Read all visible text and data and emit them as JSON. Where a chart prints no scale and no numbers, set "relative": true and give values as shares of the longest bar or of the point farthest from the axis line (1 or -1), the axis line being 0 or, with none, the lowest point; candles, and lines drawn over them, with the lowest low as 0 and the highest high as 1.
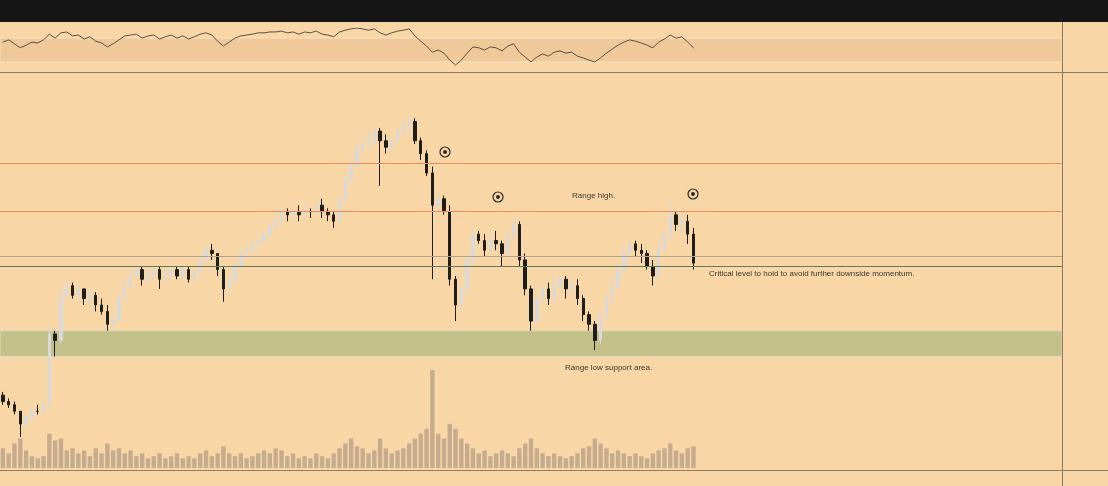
{
  "chart_data": [
    {
      "type": "line",
      "relative": true,
      "tick_labels": false,
      "marker": "none",
      "color": "#5a5047",
      "categories": [
        null,
        null,
        null,
        null,
        null,
        null,
        null,
        null,
        null,
        null,
        null,
        null,
        null,
        null,
        null,
        null,
        null,
        null,
        null,
        null,
        null,
        null,
        null,
        null,
        null,
        null,
        null,
        null,
        null,
        null,
        null,
        null,
        null,
        null,
        null,
        null,
        null,
        null,
        null,
        null,
        null,
        null,
        null,
        null,
        null,
        null,
        null,
        null,
        null,
        null,
        null,
        null,
        null,
        null,
        null,
        null,
        null,
        null,
        null,
        null,
        null,
        null,
        null,
        null,
        null,
        null,
        null,
        null,
        null,
        null,
        null,
        null,
        null,
        null,
        null,
        null,
        null,
        null,
        null,
        null,
        null,
        null,
        null,
        null,
        null,
        null,
        null,
        null,
        null,
        null,
        null,
        null,
        null,
        null,
        null,
        null,
        null,
        null,
        null,
        null,
        null,
        null,
        null,
        null,
        null,
        null,
        null,
        null,
        null,
        null,
        null,
        null,
        null,
        null,
        null,
        null,
        null,
        null,
        null,
        null,
        null,
        null,
        null,
        null,
        null,
        null,
        null,
        null,
        null,
        null,
        null,
        null,
        null,
        null,
        null,
        null,
        null,
        null,
        null,
        null,
        null,
        null,
        null,
        null,
        null,
        null,
        null,
        null,
        null,
        null,
        null,
        null,
        null,
        null,
        null,
        null,
        null,
        null,
        null,
        null,
        null,
        null,
        null,
        null,
        null,
        null,
        null,
        null,
        null,
        null,
        null,
        null,
        null,
        null,
        null,
        null,
        null,
        null,
        null,
        null,
        null,
        null,
        null
      ],
      "values": [
        0.68,
        0.73,
        0.64,
        0.55,
        0.61,
        0.68,
        0.66,
        0.73,
        0.86,
        0.77,
        0.89,
        0.91,
        0.82,
        0.84,
        0.75,
        0.8,
        0.7,
        0.66,
        0.57,
        0.64,
        0.73,
        0.82,
        0.84,
        0.86,
        0.77,
        0.82,
        0.84,
        0.75,
        0.8,
        0.84,
        0.77,
        0.82,
        0.75,
        0.8,
        0.86,
        0.89,
        0.84,
        0.7,
        0.59,
        0.68,
        0.77,
        0.82,
        0.84,
        0.86,
        0.89,
        0.89,
        0.91,
        0.91,
        0.93,
        0.89,
        0.91,
        0.86,
        0.91,
        0.89,
        0.93,
        0.86,
        0.84,
        0.8,
        0.91,
        0.95,
        0.98,
        1.0,
        0.98,
        0.95,
        0.98,
        0.89,
        0.84,
        0.89,
        0.93,
        0.95,
        0.98,
        0.82,
        0.7,
        0.59,
        0.45,
        0.5,
        0.43,
        0.27,
        0.16,
        0.27,
        0.43,
        0.57,
        0.55,
        0.5,
        0.57,
        0.55,
        0.48,
        0.59,
        0.64,
        0.45,
        0.34,
        0.23,
        0.34,
        0.41,
        0.36,
        0.45,
        0.48,
        0.43,
        0.45,
        0.36,
        0.32,
        0.27,
        0.23,
        0.32,
        0.43,
        0.52,
        0.61,
        0.68,
        0.73,
        0.7,
        0.66,
        0.61,
        0.55,
        0.68,
        0.75,
        0.84,
        0.77,
        0.8,
        0.68,
        0.55,
        null,
        null,
        null,
        null,
        null,
        null,
        null,
        null,
        null,
        null,
        null,
        null,
        null,
        null,
        null,
        null,
        null,
        null,
        null,
        null,
        null,
        null,
        null,
        null,
        null,
        null,
        null,
        null,
        null,
        null,
        null,
        null,
        null,
        null,
        null,
        null,
        null,
        null,
        null,
        null,
        null,
        null,
        null,
        null,
        null,
        null,
        null,
        null,
        null,
        null,
        null,
        null,
        null,
        null,
        null,
        null,
        null,
        null,
        null,
        null,
        null,
        null,
        null
      ],
      "bands": [
        {
          "axis": "y",
          "from": 0.23,
          "to": 0.77,
          "color": "#efc999"
        }
      ]
    },
    {
      "type": "candlestick",
      "relative": true,
      "tick_labels": false,
      "categories": [
        null,
        null,
        null,
        null,
        null,
        null,
        null,
        null,
        null,
        null,
        null,
        null,
        null,
        null,
        null,
        null,
        null,
        null,
        null,
        null,
        null,
        null,
        null,
        null,
        null,
        null,
        null,
        null,
        null,
        null,
        null,
        null,
        null,
        null,
        null,
        null,
        null,
        null,
        null,
        null,
        null,
        null,
        null,
        null,
        null,
        null,
        null,
        null,
        null,
        null,
        null,
        null,
        null,
        null,
        null,
        null,
        null,
        null,
        null,
        null,
        null,
        null,
        null,
        null,
        null,
        null,
        null,
        null,
        null,
        null,
        null,
        null,
        null,
        null,
        null,
        null,
        null,
        null,
        null,
        null,
        null,
        null,
        null,
        null,
        null,
        null,
        null,
        null,
        null,
        null,
        null,
        null,
        null,
        null,
        null,
        null,
        null,
        null,
        null,
        null,
        null,
        null,
        null,
        null,
        null,
        null,
        null,
        null,
        null,
        null,
        null,
        null,
        null,
        null,
        null,
        null,
        null,
        null,
        null,
        null,
        null,
        null,
        null,
        null,
        null,
        null,
        null,
        null,
        null,
        null,
        null,
        null,
        null,
        null,
        null,
        null,
        null,
        null,
        null,
        null,
        null,
        null,
        null,
        null,
        null,
        null,
        null,
        null,
        null,
        null,
        null,
        null,
        null,
        null,
        null,
        null,
        null,
        null,
        null,
        null,
        null,
        null,
        null,
        null,
        null,
        null,
        null,
        null,
        null,
        null,
        null,
        null,
        null,
        null,
        null,
        null,
        null,
        null,
        null,
        null,
        null,
        null,
        null
      ],
      "ohlc": [
        [
          0.13,
          0.14,
          0.1,
          0.11
        ],
        [
          0.11,
          0.12,
          0.09,
          0.1
        ],
        [
          0.1,
          0.11,
          0.07,
          0.08
        ],
        [
          0.08,
          0.08,
          0.0,
          0.04
        ],
        [
          0.04,
          0.07,
          0.03,
          0.06
        ],
        [
          0.06,
          0.1,
          0.05,
          0.08
        ],
        [
          0.08,
          0.1,
          0.07,
          0.08
        ],
        [
          0.08,
          0.11,
          0.07,
          0.1
        ],
        [
          0.1,
          0.35,
          0.09,
          0.32
        ],
        [
          0.32,
          0.33,
          0.25,
          0.3
        ],
        [
          0.3,
          0.47,
          0.29,
          0.44
        ],
        [
          0.44,
          0.49,
          0.43,
          0.47
        ],
        [
          0.47,
          0.48,
          0.43,
          0.44
        ],
        [
          0.44,
          0.48,
          0.43,
          0.46
        ],
        [
          0.46,
          0.46,
          0.41,
          0.43
        ],
        [
          0.43,
          0.46,
          0.41,
          0.44
        ],
        [
          0.44,
          0.45,
          0.39,
          0.41
        ],
        [
          0.41,
          0.43,
          0.38,
          0.39
        ],
        [
          0.39,
          0.41,
          0.33,
          0.35
        ],
        [
          0.35,
          0.38,
          0.33,
          0.36
        ],
        [
          0.36,
          0.44,
          0.36,
          0.43
        ],
        [
          0.43,
          0.49,
          0.42,
          0.47
        ],
        [
          0.47,
          0.52,
          0.46,
          0.5
        ],
        [
          0.5,
          0.54,
          0.49,
          0.52
        ],
        [
          0.52,
          0.53,
          0.47,
          0.49
        ],
        [
          0.49,
          0.52,
          0.47,
          0.5
        ],
        [
          0.5,
          0.53,
          0.49,
          0.52
        ],
        [
          0.52,
          0.53,
          0.46,
          0.49
        ],
        [
          0.49,
          0.52,
          0.48,
          0.5
        ],
        [
          0.5,
          0.54,
          0.49,
          0.52
        ],
        [
          0.52,
          0.53,
          0.49,
          0.5
        ],
        [
          0.5,
          0.53,
          0.49,
          0.52
        ],
        [
          0.52,
          0.53,
          0.48,
          0.49
        ],
        [
          0.49,
          0.52,
          0.48,
          0.51
        ],
        [
          0.51,
          0.57,
          0.5,
          0.55
        ],
        [
          0.55,
          0.6,
          0.54,
          0.58
        ],
        [
          0.58,
          0.6,
          0.55,
          0.57
        ],
        [
          0.57,
          0.57,
          0.5,
          0.52
        ],
        [
          0.52,
          0.53,
          0.42,
          0.46
        ],
        [
          0.46,
          0.5,
          0.44,
          0.49
        ],
        [
          0.49,
          0.55,
          0.48,
          0.53
        ],
        [
          0.53,
          0.58,
          0.52,
          0.57
        ],
        [
          0.57,
          0.6,
          0.55,
          0.58
        ],
        [
          0.58,
          0.61,
          0.57,
          0.6
        ],
        [
          0.6,
          0.63,
          0.58,
          0.61
        ],
        [
          0.61,
          0.64,
          0.6,
          0.63
        ],
        [
          0.63,
          0.67,
          0.61,
          0.65
        ],
        [
          0.65,
          0.69,
          0.64,
          0.67
        ],
        [
          0.67,
          0.72,
          0.66,
          0.7
        ],
        [
          0.7,
          0.71,
          0.67,
          0.69
        ],
        [
          0.69,
          0.72,
          0.68,
          0.7
        ],
        [
          0.7,
          0.72,
          0.67,
          0.69
        ],
        [
          0.69,
          0.72,
          0.68,
          0.7
        ],
        [
          0.7,
          0.71,
          0.68,
          0.7
        ],
        [
          0.7,
          0.74,
          0.69,
          0.72
        ],
        [
          0.72,
          0.74,
          0.68,
          0.7
        ],
        [
          0.7,
          0.71,
          0.67,
          0.69
        ],
        [
          0.69,
          0.7,
          0.65,
          0.67
        ],
        [
          0.67,
          0.75,
          0.66,
          0.74
        ],
        [
          0.74,
          0.81,
          0.72,
          0.8
        ],
        [
          0.8,
          0.87,
          0.78,
          0.84
        ],
        [
          0.84,
          0.91,
          0.84,
          0.9
        ],
        [
          0.9,
          0.94,
          0.88,
          0.91
        ],
        [
          0.91,
          0.95,
          0.89,
          0.92
        ],
        [
          0.92,
          0.97,
          0.91,
          0.95
        ],
        [
          0.95,
          0.96,
          0.78,
          0.92
        ],
        [
          0.92,
          0.94,
          0.88,
          0.9
        ],
        [
          0.9,
          0.93,
          0.89,
          0.92
        ],
        [
          0.92,
          0.97,
          0.91,
          0.95
        ],
        [
          0.95,
          0.98,
          0.94,
          0.97
        ],
        [
          0.97,
          1.0,
          0.95,
          0.98
        ],
        [
          0.98,
          0.99,
          0.91,
          0.92
        ],
        [
          0.92,
          0.93,
          0.86,
          0.88
        ],
        [
          0.88,
          0.89,
          0.81,
          0.82
        ],
        [
          0.82,
          0.84,
          0.49,
          0.72
        ],
        [
          0.72,
          0.75,
          0.7,
          0.74
        ],
        [
          0.74,
          0.75,
          0.69,
          0.7
        ],
        [
          0.7,
          0.72,
          0.47,
          0.49
        ],
        [
          0.49,
          0.5,
          0.36,
          0.41
        ],
        [
          0.41,
          0.47,
          0.39,
          0.46
        ],
        [
          0.46,
          0.57,
          0.44,
          0.55
        ],
        [
          0.55,
          0.65,
          0.53,
          0.63
        ],
        [
          0.63,
          0.64,
          0.6,
          0.61
        ],
        [
          0.61,
          0.63,
          0.56,
          0.58
        ],
        [
          0.58,
          0.63,
          0.57,
          0.61
        ],
        [
          0.61,
          0.64,
          0.58,
          0.6
        ],
        [
          0.6,
          0.61,
          0.53,
          0.57
        ],
        [
          0.57,
          0.64,
          0.56,
          0.63
        ],
        [
          0.63,
          0.68,
          0.61,
          0.66
        ],
        [
          0.66,
          0.67,
          0.53,
          0.55
        ],
        [
          0.55,
          0.57,
          0.44,
          0.46
        ],
        [
          0.46,
          0.47,
          0.33,
          0.36
        ],
        [
          0.36,
          0.44,
          0.35,
          0.43
        ],
        [
          0.43,
          0.47,
          0.41,
          0.46
        ],
        [
          0.46,
          0.48,
          0.41,
          0.43
        ],
        [
          0.43,
          0.52,
          0.41,
          0.47
        ],
        [
          0.47,
          0.5,
          0.46,
          0.49
        ],
        [
          0.49,
          0.5,
          0.43,
          0.46
        ],
        [
          0.46,
          0.49,
          0.44,
          0.47
        ],
        [
          0.47,
          0.49,
          0.41,
          0.43
        ],
        [
          0.43,
          0.44,
          0.36,
          0.38
        ],
        [
          0.38,
          0.39,
          0.33,
          0.35
        ],
        [
          0.35,
          0.36,
          0.27,
          0.3
        ],
        [
          0.3,
          0.39,
          0.29,
          0.38
        ],
        [
          0.38,
          0.44,
          0.36,
          0.43
        ],
        [
          0.43,
          0.49,
          0.41,
          0.47
        ],
        [
          0.47,
          0.54,
          0.46,
          0.52
        ],
        [
          0.52,
          0.59,
          0.5,
          0.57
        ],
        [
          0.57,
          0.62,
          0.55,
          0.6
        ],
        [
          0.6,
          0.61,
          0.56,
          0.58
        ],
        [
          0.58,
          0.6,
          0.54,
          0.57
        ],
        [
          0.57,
          0.58,
          0.52,
          0.53
        ],
        [
          0.53,
          0.55,
          0.47,
          0.5
        ],
        [
          0.5,
          0.6,
          0.49,
          0.58
        ],
        [
          0.58,
          0.64,
          0.57,
          0.63
        ],
        [
          0.63,
          0.74,
          0.61,
          0.69
        ],
        [
          0.69,
          0.7,
          0.64,
          0.66
        ],
        [
          0.66,
          0.69,
          0.63,
          0.67
        ],
        [
          0.67,
          0.69,
          0.6,
          0.63
        ],
        [
          0.63,
          0.65,
          0.52,
          0.54
        ],
        null,
        null,
        null,
        null,
        null,
        null,
        null,
        null,
        null,
        null,
        null,
        null,
        null,
        null,
        null,
        null,
        null,
        null,
        null,
        null,
        null,
        null,
        null,
        null,
        null,
        null,
        null,
        null,
        null,
        null,
        null,
        null,
        null,
        null,
        null,
        null,
        null,
        null,
        null,
        null,
        null,
        null,
        null,
        null,
        null,
        null,
        null,
        null,
        null,
        null,
        null,
        null,
        null,
        null,
        null,
        null,
        null,
        null,
        null,
        null,
        null,
        null,
        null
      ],
      "colors": [
        "#1e1e1e",
        "#1e1e1e",
        "#1e1e1e",
        "#1e1e1e",
        "#d9d9d9",
        "#d9d9d9",
        "#1e1e1e",
        "#d9d9d9",
        "#d9d9d9",
        "#1e1e1e",
        "#d9d9d9",
        "#d9d9d9",
        "#1e1e1e",
        "#d9d9d9",
        "#1e1e1e",
        "#d9d9d9",
        "#1e1e1e",
        "#1e1e1e",
        "#1e1e1e",
        "#d9d9d9",
        "#d9d9d9",
        "#d9d9d9",
        "#d9d9d9",
        "#d9d9d9",
        "#1e1e1e",
        "#d9d9d9",
        "#d9d9d9",
        "#1e1e1e",
        "#d9d9d9",
        "#d9d9d9",
        "#1e1e1e",
        "#d9d9d9",
        "#1e1e1e",
        "#d9d9d9",
        "#d9d9d9",
        "#d9d9d9",
        "#1e1e1e",
        "#1e1e1e",
        "#1e1e1e",
        "#d9d9d9",
        "#d9d9d9",
        "#d9d9d9",
        "#d9d9d9",
        "#d9d9d9",
        "#d9d9d9",
        "#d9d9d9",
        "#d9d9d9",
        "#d9d9d9",
        "#d9d9d9",
        "#1e1e1e",
        "#d9d9d9",
        "#1e1e1e",
        "#d9d9d9",
        "#1e1e1e",
        "#d9d9d9",
        "#1e1e1e",
        "#1e1e1e",
        "#1e1e1e",
        "#d9d9d9",
        "#d9d9d9",
        "#d9d9d9",
        "#d9d9d9",
        "#d9d9d9",
        "#d9d9d9",
        "#d9d9d9",
        "#1e1e1e",
        "#1e1e1e",
        "#d9d9d9",
        "#d9d9d9",
        "#d9d9d9",
        "#d9d9d9",
        "#1e1e1e",
        "#1e1e1e",
        "#1e1e1e",
        "#1e1e1e",
        "#d9d9d9",
        "#1e1e1e",
        "#1e1e1e",
        "#1e1e1e",
        "#d9d9d9",
        "#d9d9d9",
        "#d9d9d9",
        "#1e1e1e",
        "#1e1e1e",
        "#d9d9d9",
        "#1e1e1e",
        "#1e1e1e",
        "#d9d9d9",
        "#d9d9d9",
        "#1e1e1e",
        "#1e1e1e",
        "#1e1e1e",
        "#d9d9d9",
        "#d9d9d9",
        "#1e1e1e",
        "#d9d9d9",
        "#d9d9d9",
        "#1e1e1e",
        "#d9d9d9",
        "#1e1e1e",
        "#1e1e1e",
        "#1e1e1e",
        "#1e1e1e",
        "#d9d9d9",
        "#d9d9d9",
        "#d9d9d9",
        "#d9d9d9",
        "#d9d9d9",
        "#d9d9d9",
        "#1e1e1e",
        "#1e1e1e",
        "#1e1e1e",
        "#1e1e1e",
        "#d9d9d9",
        "#d9d9d9",
        "#d9d9d9",
        "#1e1e1e",
        "#d9d9d9",
        "#1e1e1e",
        "#1e1e1e",
        null,
        null,
        null,
        null,
        null,
        null,
        null,
        null,
        null,
        null,
        null,
        null,
        null,
        null,
        null,
        null,
        null,
        null,
        null,
        null,
        null,
        null,
        null,
        null,
        null,
        null,
        null,
        null,
        null,
        null,
        null,
        null,
        null,
        null,
        null,
        null,
        null,
        null,
        null,
        null,
        null,
        null,
        null,
        null,
        null,
        null,
        null,
        null,
        null,
        null,
        null,
        null,
        null,
        null,
        null,
        null,
        null,
        null,
        null,
        null,
        null,
        null,
        null
      ],
      "ref_lines": [
        {
          "axis": "y",
          "value": 0.85,
          "color": "#f08a5a"
        },
        {
          "axis": "y",
          "value": 0.7,
          "color": "#f08a5a"
        },
        {
          "axis": "y",
          "value": 0.56,
          "color": "#b4a28e"
        },
        {
          "axis": "y",
          "value": 0.53,
          "color": "#5f7a5a"
        }
      ],
      "bands": [
        {
          "axis": "y",
          "from": 0.25,
          "to": 0.33,
          "color": "#c4c08a"
        }
      ],
      "annotations": [
        "Range high.",
        "Critical level to hold to avoid further downside momentum.",
        "Range low support area."
      ]
    },
    {
      "type": "bar",
      "relative": true,
      "tick_labels": false,
      "color": "#bca58b",
      "categories": [
        null,
        null,
        null,
        null,
        null,
        null,
        null,
        null,
        null,
        null,
        null,
        null,
        null,
        null,
        null,
        null,
        null,
        null,
        null,
        null,
        null,
        null,
        null,
        null,
        null,
        null,
        null,
        null,
        null,
        null,
        null,
        null,
        null,
        null,
        null,
        null,
        null,
        null,
        null,
        null,
        null,
        null,
        null,
        null,
        null,
        null,
        null,
        null,
        null,
        null,
        null,
        null,
        null,
        null,
        null,
        null,
        null,
        null,
        null,
        null,
        null,
        null,
        null,
        null,
        null,
        null,
        null,
        null,
        null,
        null,
        null,
        null,
        null,
        null,
        null,
        null,
        null,
        null,
        null,
        null,
        null,
        null,
        null,
        null,
        null,
        null,
        null,
        null,
        null,
        null,
        null,
        null,
        null,
        null,
        null,
        null,
        null,
        null,
        null,
        null,
        null,
        null,
        null,
        null,
        null,
        null,
        null,
        null,
        null,
        null,
        null,
        null,
        null,
        null,
        null,
        null,
        null,
        null,
        null,
        null,
        null,
        null,
        null,
        null,
        null,
        null,
        null,
        null,
        null,
        null,
        null,
        null,
        null,
        null,
        null,
        null,
        null,
        null,
        null,
        null,
        null,
        null,
        null,
        null,
        null,
        null,
        null,
        null,
        null,
        null,
        null,
        null,
        null,
        null,
        null,
        null,
        null,
        null,
        null,
        null,
        null,
        null,
        null,
        null,
        null,
        null,
        null,
        null,
        null,
        null,
        null,
        null,
        null,
        null,
        null,
        null,
        null,
        null,
        null,
        null,
        null,
        null,
        null
      ],
      "values": [
        0.2,
        0.15,
        0.25,
        0.3,
        0.18,
        0.12,
        0.1,
        0.12,
        0.35,
        0.28,
        0.3,
        0.18,
        0.2,
        0.15,
        0.18,
        0.12,
        0.2,
        0.15,
        0.25,
        0.18,
        0.2,
        0.15,
        0.18,
        0.12,
        0.15,
        0.1,
        0.12,
        0.15,
        0.1,
        0.12,
        0.15,
        0.1,
        0.12,
        0.1,
        0.15,
        0.18,
        0.12,
        0.15,
        0.22,
        0.15,
        0.12,
        0.15,
        0.1,
        0.12,
        0.15,
        0.18,
        0.15,
        0.2,
        0.18,
        0.12,
        0.15,
        0.1,
        0.12,
        0.1,
        0.15,
        0.12,
        0.1,
        0.15,
        0.2,
        0.25,
        0.3,
        0.22,
        0.2,
        0.15,
        0.18,
        0.3,
        0.2,
        0.15,
        0.18,
        0.2,
        0.25,
        0.3,
        0.35,
        0.4,
        1.0,
        0.35,
        0.3,
        0.45,
        0.4,
        0.3,
        0.25,
        0.2,
        0.15,
        0.18,
        0.12,
        0.15,
        0.18,
        0.15,
        0.12,
        0.2,
        0.25,
        0.3,
        0.2,
        0.15,
        0.12,
        0.15,
        0.12,
        0.1,
        0.12,
        0.15,
        0.2,
        0.22,
        0.3,
        0.25,
        0.2,
        0.15,
        0.18,
        0.15,
        0.12,
        0.15,
        0.12,
        0.1,
        0.15,
        0.18,
        0.2,
        0.25,
        0.18,
        0.15,
        0.2,
        0.22,
        null,
        null,
        null,
        null,
        null,
        null,
        null,
        null,
        null,
        null,
        null,
        null,
        null,
        null,
        null,
        null,
        null,
        null,
        null,
        null,
        null,
        null,
        null,
        null,
        null,
        null,
        null,
        null,
        null,
        null,
        null,
        null,
        null,
        null,
        null,
        null,
        null,
        null,
        null,
        null,
        null,
        null,
        null,
        null,
        null,
        null,
        null,
        null,
        null,
        null,
        null,
        null,
        null,
        null,
        null,
        null,
        null,
        null,
        null,
        null,
        null,
        null,
        null
      ]
    }
  ]
}
